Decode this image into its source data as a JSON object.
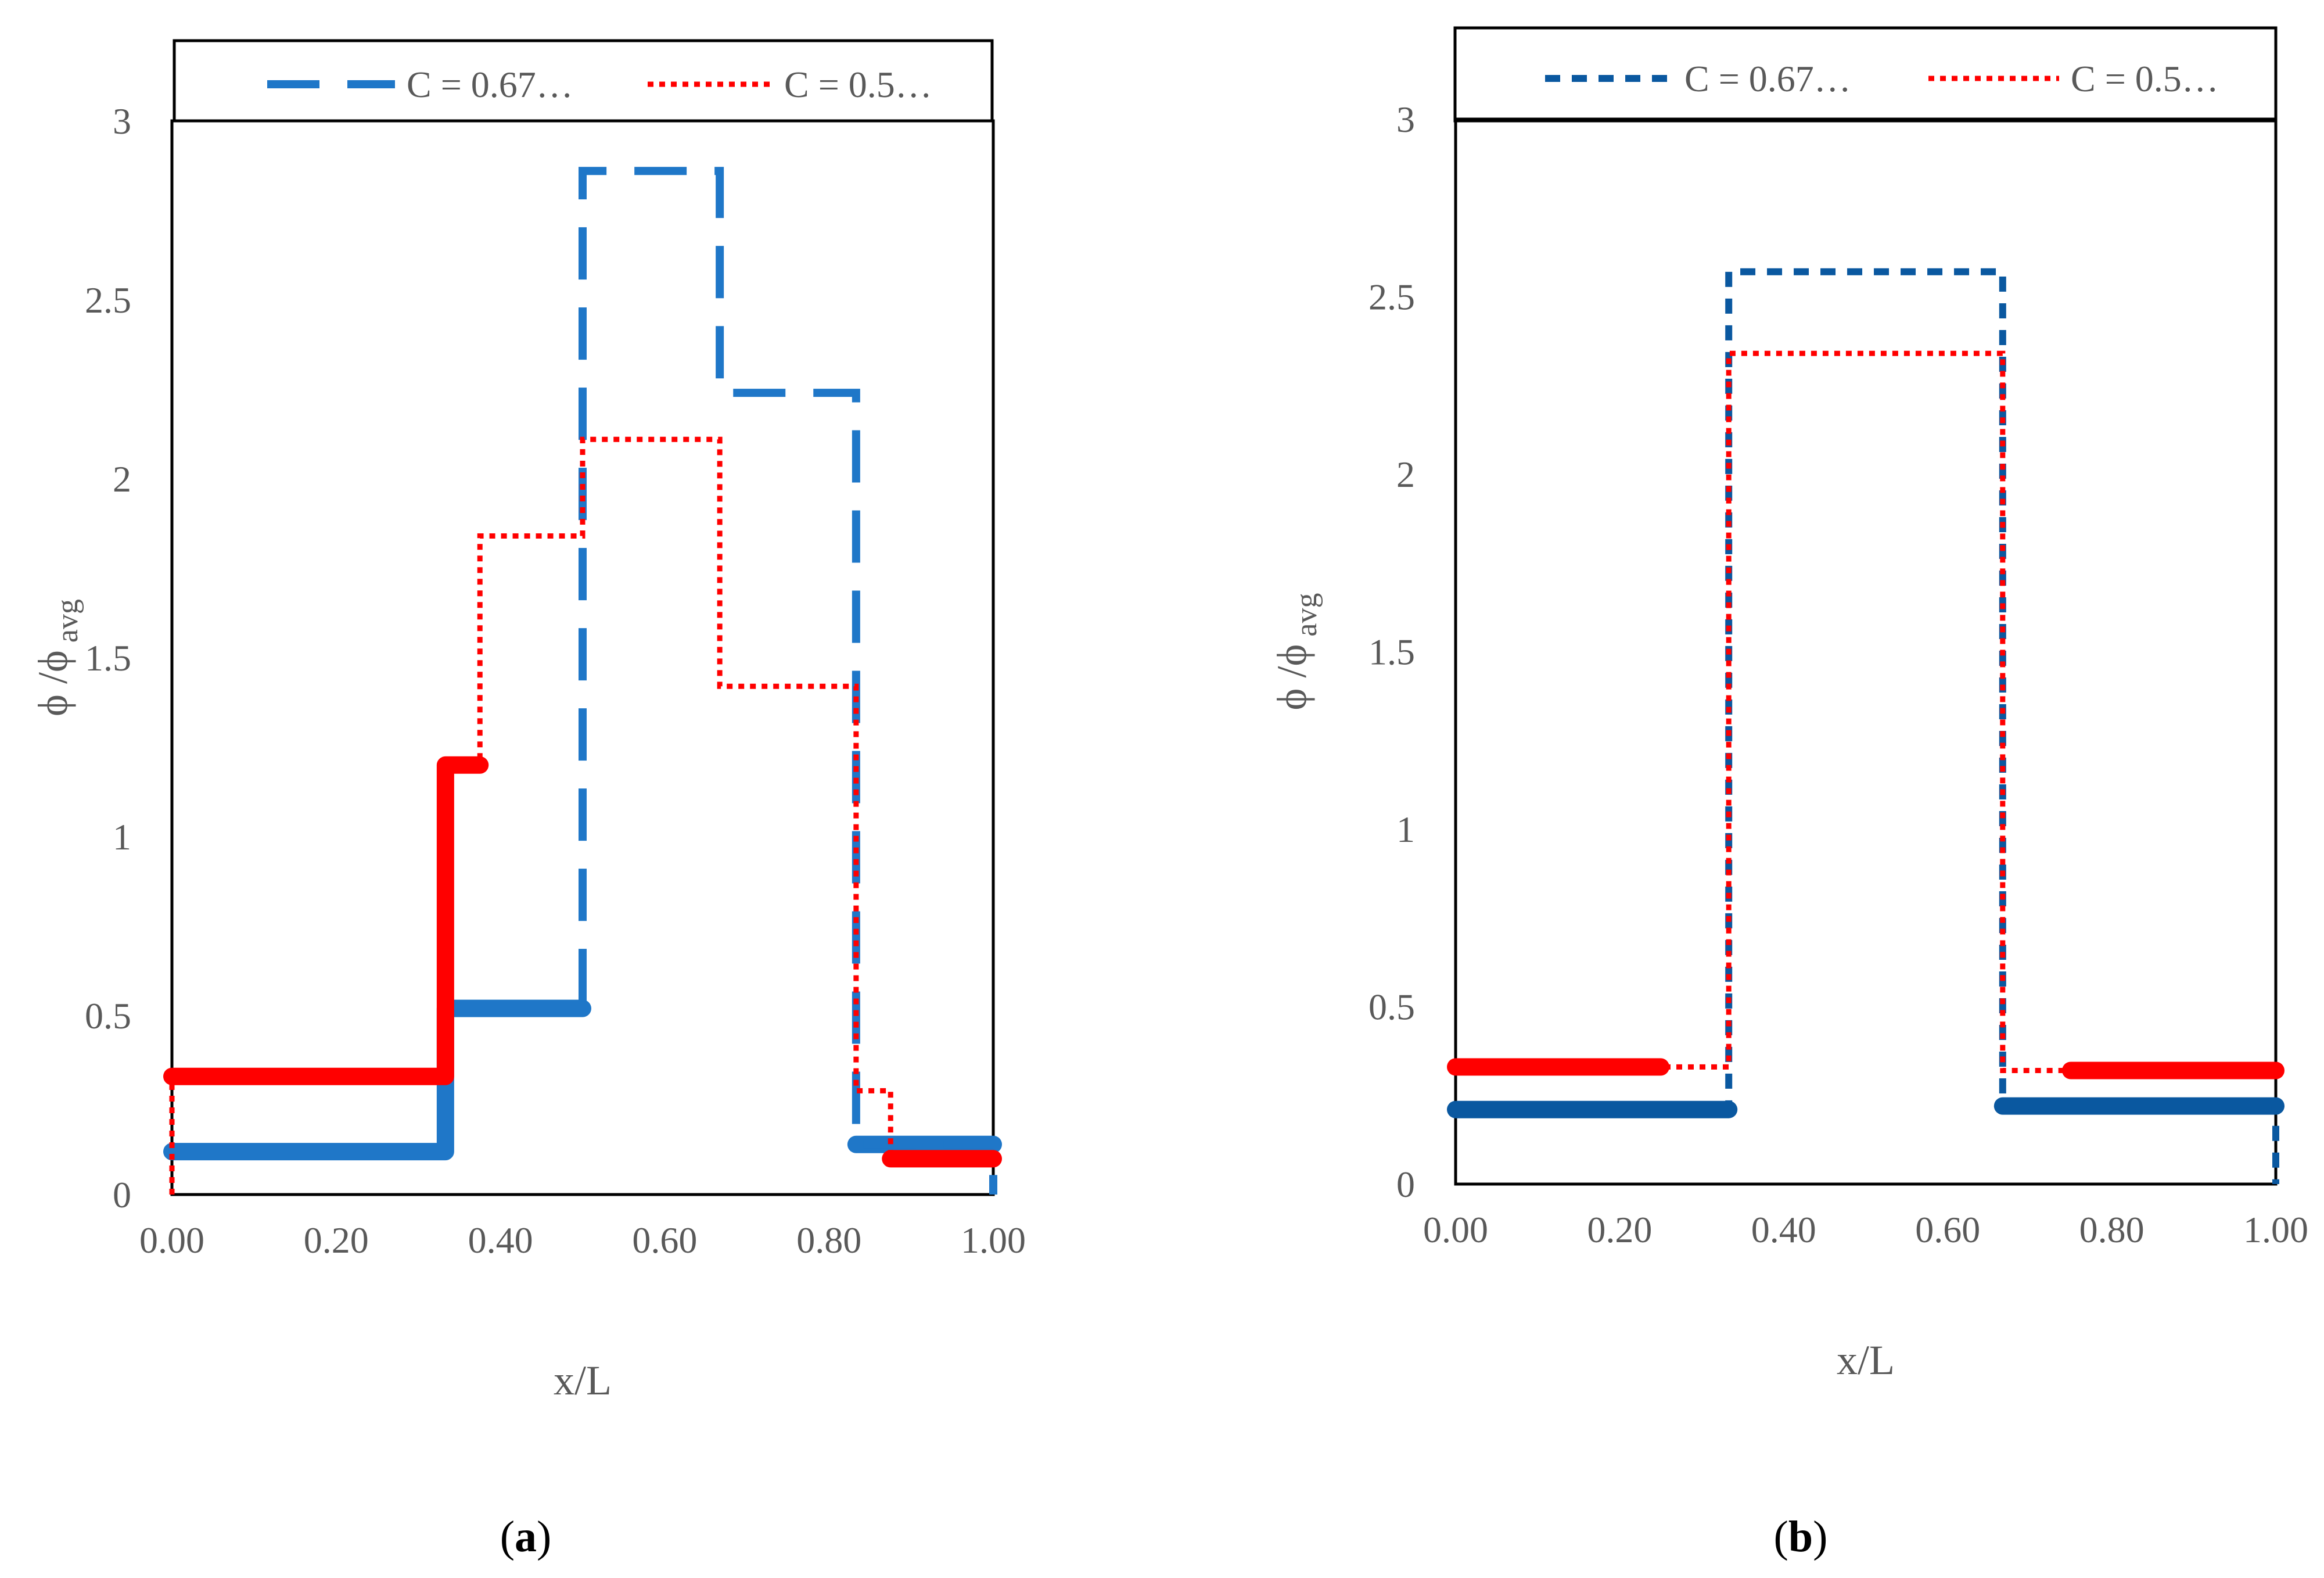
{
  "chart_data": [
    {
      "type": "line",
      "panel_label": "a",
      "xlabel": "x/L",
      "ylabel": {
        "main": "ϕ /ϕ",
        "sub": "avg"
      },
      "xlim": [
        0,
        1
      ],
      "ylim": [
        0,
        3
      ],
      "xticks": [
        "0.00",
        "0.20",
        "0.40",
        "0.60",
        "0.80",
        "1.00"
      ],
      "yticks": [
        "0",
        "0.5",
        "1",
        "1.5",
        "2",
        "2.5",
        "3"
      ],
      "legend": [
        "C = 0.67…",
        "C = 0.5…"
      ],
      "series": [
        {
          "name": "C = 0.67…",
          "color": "#1f77c8",
          "style": "long-dash",
          "points": [
            [
              0.0,
              0.12
            ],
            [
              0.333,
              0.12
            ],
            [
              0.333,
              0.52
            ],
            [
              0.5,
              0.52
            ],
            [
              0.5,
              2.86
            ],
            [
              0.667,
              2.86
            ],
            [
              0.667,
              2.24
            ],
            [
              0.833,
              2.24
            ],
            [
              0.833,
              0.14
            ],
            [
              1.0,
              0.14
            ],
            [
              1.0,
              0.0
            ]
          ],
          "thick_segments": [
            [
              [
                0.0,
                0.12
              ],
              [
                0.333,
                0.12
              ],
              [
                0.333,
                0.52
              ],
              [
                0.5,
                0.52
              ]
            ],
            [
              [
                0.833,
                0.14
              ],
              [
                1.0,
                0.14
              ]
            ]
          ]
        },
        {
          "name": "C = 0.5…",
          "color": "#ff0000",
          "style": "dotted",
          "points": [
            [
              0.0,
              0.0
            ],
            [
              0.0,
              0.33
            ],
            [
              0.333,
              0.33
            ],
            [
              0.333,
              1.2
            ],
            [
              0.375,
              1.2
            ],
            [
              0.375,
              1.84
            ],
            [
              0.5,
              1.84
            ],
            [
              0.5,
              2.11
            ],
            [
              0.667,
              2.11
            ],
            [
              0.667,
              1.42
            ],
            [
              0.833,
              1.42
            ],
            [
              0.833,
              0.29
            ],
            [
              0.875,
              0.29
            ],
            [
              0.875,
              0.1
            ],
            [
              1.0,
              0.1
            ]
          ],
          "thick_segments": [
            [
              [
                0.0,
                0.33
              ],
              [
                0.333,
                0.33
              ],
              [
                0.333,
                1.2
              ],
              [
                0.375,
                1.2
              ]
            ],
            [
              [
                0.875,
                0.1
              ],
              [
                1.0,
                0.1
              ]
            ]
          ]
        }
      ]
    },
    {
      "type": "line",
      "panel_label": "b",
      "xlabel": "x/L",
      "ylabel": {
        "main": "ϕ /ϕ",
        "sub": "avg"
      },
      "xlim": [
        0,
        1
      ],
      "ylim": [
        0,
        3
      ],
      "xticks": [
        "0.00",
        "0.20",
        "0.40",
        "0.60",
        "0.80",
        "1.00"
      ],
      "yticks": [
        "0",
        "0.5",
        "1",
        "1.5",
        "2",
        "2.5",
        "3"
      ],
      "legend": [
        "C = 0.67…",
        "C = 0.5…"
      ],
      "series": [
        {
          "name": "C = 0.67…",
          "color": "#0a58a0",
          "style": "short-dash",
          "points": [
            [
              0.0,
              0.21
            ],
            [
              0.333,
              0.21
            ],
            [
              0.333,
              2.57
            ],
            [
              0.667,
              2.57
            ],
            [
              0.667,
              0.22
            ],
            [
              1.0,
              0.22
            ],
            [
              1.0,
              0.0
            ]
          ],
          "thick_segments": [
            [
              [
                0.0,
                0.21
              ],
              [
                0.333,
                0.21
              ]
            ],
            [
              [
                0.667,
                0.22
              ],
              [
                1.0,
                0.22
              ]
            ]
          ]
        },
        {
          "name": "C = 0.5…",
          "color": "#ff0000",
          "style": "dotted",
          "points": [
            [
              0.0,
              0.33
            ],
            [
              0.333,
              0.33
            ],
            [
              0.333,
              2.34
            ],
            [
              0.667,
              2.34
            ],
            [
              0.667,
              0.32
            ],
            [
              1.0,
              0.32
            ]
          ],
          "thick_segments": [
            [
              [
                0.0,
                0.33
              ],
              [
                0.25,
                0.33
              ]
            ],
            [
              [
                0.75,
                0.32
              ],
              [
                1.0,
                0.32
              ]
            ]
          ]
        }
      ]
    }
  ]
}
